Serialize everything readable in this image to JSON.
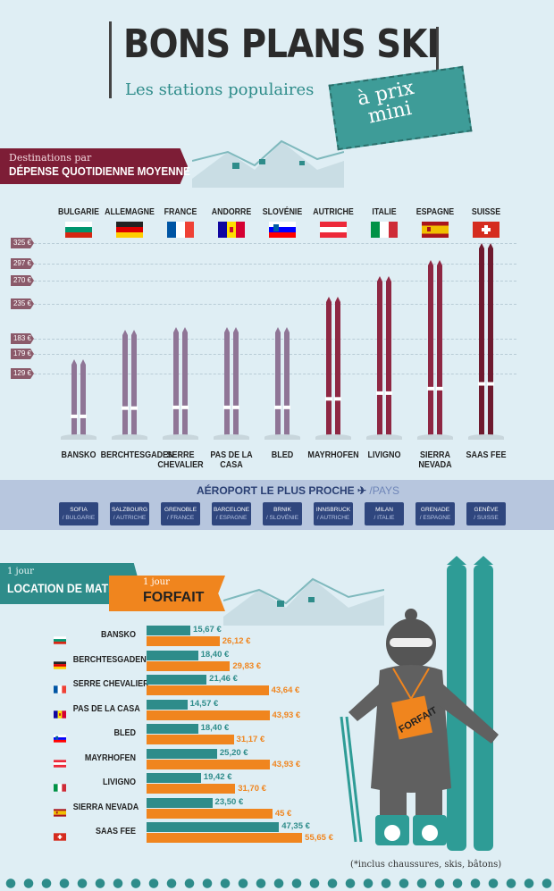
{
  "header": {
    "title": "BONS PLANS SKI",
    "subtitle": "Les stations populaires",
    "stamp_line1": "à prix",
    "stamp_line2": "mini"
  },
  "section1": {
    "label_line1": "Destinations par",
    "label_line2": "DÉPENSE QUOTIDIENNE MOYENNE",
    "price_tags": [
      "325 €",
      "297 €",
      "270 €",
      "235 €",
      "183 €",
      "179 €",
      "129 €"
    ]
  },
  "airport": {
    "title": "AÉROPORT LE PLUS PROCHE",
    "subtitle": "/PAYS",
    "items": [
      {
        "city": "SOFIA",
        "country": "/ BULGARIE"
      },
      {
        "city": "SALZBOURG",
        "country": "/ AUTRICHE"
      },
      {
        "city": "GRENOBLE",
        "country": "/ FRANCE"
      },
      {
        "city": "BARCELONE",
        "country": "/ ESPAGNE"
      },
      {
        "city": "BRNIK",
        "country": "/ SLOVÉNIE"
      },
      {
        "city": "INNSBRUCK",
        "country": "/ AUTRICHE"
      },
      {
        "city": "MILAN",
        "country": "/ ITALIE"
      },
      {
        "city": "GRENADE",
        "country": "/ ESPAGNE"
      },
      {
        "city": "GENÈVE",
        "country": "/ SUISSE"
      }
    ]
  },
  "section2": {
    "label_small": "1 jour",
    "label_big": "LOCATION DE MATÉRIEL",
    "label_star": "*",
    "forfait_small": "1 jour",
    "forfait_big": "FORFAIT",
    "skier_tag": "FORFAIT",
    "footnote": "(*inclus chaussures, skis, bâtons)"
  },
  "chart_data": [
    {
      "type": "bar",
      "orientation": "vertical",
      "title": "DÉPENSE QUOTIDIENNE MOYENNE",
      "countries": [
        "BULGARIE",
        "ALLEMAGNE",
        "FRANCE",
        "ANDORRE",
        "SLOVÉNIE",
        "AUTRICHE",
        "ITALIE",
        "ESPAGNE",
        "SUISSE"
      ],
      "categories": [
        "BANSKO",
        "BERCHTESGADEN",
        "SERRE CHEVALIER",
        "PAS DE LA CASA",
        "BLED",
        "MAYRHOFEN",
        "LIVIGNO",
        "SIERRA NEVADA",
        "SAAS FEE"
      ],
      "values": [
        129,
        179,
        183,
        183,
        183,
        235,
        270,
        297,
        325
      ],
      "colors": [
        "#8f7596",
        "#8f7596",
        "#8f7596",
        "#8f7596",
        "#8f7596",
        "#8e2743",
        "#8e2743",
        "#8e2743",
        "#6e1a2e"
      ],
      "ylim": [
        0,
        325
      ]
    },
    {
      "type": "bar",
      "orientation": "horizontal",
      "categories": [
        "BANSKO",
        "BERCHTESGADEN",
        "SERRE CHEVALIER",
        "PAS DE LA CASA",
        "BLED",
        "MAYRHOFEN",
        "LIVIGNO",
        "SIERRA NEVADA",
        "SAAS FEE"
      ],
      "series": [
        {
          "name": "LOCATION DE MATÉRIEL",
          "color": "#2e8c8a",
          "values": [
            15.67,
            18.4,
            21.46,
            14.57,
            18.4,
            25.2,
            19.42,
            23.5,
            47.35
          ],
          "labels": [
            "15,67 €",
            "18,40 €",
            "21,46 €",
            "14,57 €",
            "18,40 €",
            "25,20 €",
            "19,42 €",
            "23,50 €",
            "47,35 €"
          ]
        },
        {
          "name": "FORFAIT",
          "color": "#f0851e",
          "values": [
            26.12,
            29.83,
            43.64,
            43.93,
            31.17,
            43.93,
            31.7,
            45,
            55.65
          ],
          "labels": [
            "26,12 €",
            "29,83 €",
            "43,64 €",
            "43,93 €",
            "31,17 €",
            "43,93 €",
            "31,70 €",
            "45 €",
            "55,65 €"
          ]
        }
      ],
      "xlim": [
        0,
        60
      ]
    }
  ]
}
